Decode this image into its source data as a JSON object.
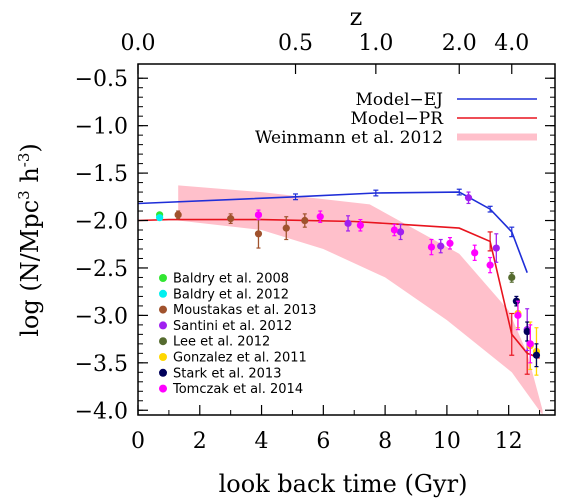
{
  "chart_data": {
    "type": "scatter",
    "xlabel": "look back time (Gyr)",
    "ylabel": "log (N/Mpc^3 h^-3)",
    "top_axis_label": "z",
    "xlim": [
      0,
      13.5
    ],
    "ylim": [
      -4.05,
      -0.35
    ],
    "x_ticks": [
      0,
      2,
      4,
      6,
      8,
      10,
      12
    ],
    "y_ticks": [
      -0.5,
      -1.0,
      -1.5,
      -2.0,
      -2.5,
      -3.0,
      -3.5,
      -4.0
    ],
    "y_tick_labels": [
      "−0.5",
      "−1.0",
      "−1.5",
      "−2.0",
      "−2.5",
      "−3.0",
      "−3.5",
      "−4.0"
    ],
    "top_ticks": [
      {
        "z_label": "0.0",
        "lookback_gyr": 0.0
      },
      {
        "z_label": "0.5",
        "lookback_gyr": 5.1
      },
      {
        "z_label": "1.0",
        "lookback_gyr": 7.7
      },
      {
        "z_label": "2.0",
        "lookback_gyr": 10.4
      },
      {
        "z_label": "4.0",
        "lookback_gyr": 12.1
      }
    ],
    "model_legend": [
      {
        "label": "Model−EJ",
        "color": "#1f2ed8",
        "style": "line"
      },
      {
        "label": "Model−PR",
        "color": "#e8141e",
        "style": "line"
      },
      {
        "label": "Weinmann et al. 2012",
        "color": "#ffc0cb",
        "style": "band"
      }
    ],
    "model_ej": {
      "color": "#1f2ed8",
      "x": [
        0,
        5.1,
        7.7,
        10.4,
        11.4,
        12.1,
        12.6
      ],
      "y": [
        -1.82,
        -1.75,
        -1.71,
        -1.7,
        -1.88,
        -2.12,
        -2.55
      ],
      "err": [
        0,
        0.03,
        0.03,
        0.03,
        0.03,
        0.05,
        0
      ]
    },
    "model_pr": {
      "color": "#e8141e",
      "x": [
        0,
        1,
        4,
        7,
        8.5,
        10.4,
        11.4,
        12.1,
        12.6,
        13
      ],
      "y": [
        -2.0,
        -1.99,
        -1.99,
        -2.01,
        -2.04,
        -2.08,
        -2.22,
        -3.2,
        -3.4,
        -3.45
      ],
      "err": [
        0,
        0,
        0,
        0,
        0,
        0,
        0.1,
        0.22,
        0.22,
        0
      ]
    },
    "weinmann_band": {
      "color": "#ffc0cb",
      "upper": [
        [
          1.3,
          -1.63
        ],
        [
          4,
          -1.7
        ],
        [
          7.5,
          -1.83
        ],
        [
          10.4,
          -2.35
        ],
        [
          12,
          -2.95
        ],
        [
          12.6,
          -3.4
        ],
        [
          13.1,
          -4.0
        ]
      ],
      "lower": [
        [
          13.1,
          -4.05
        ],
        [
          12.1,
          -3.6
        ],
        [
          10,
          -3.05
        ],
        [
          8,
          -2.6
        ],
        [
          6,
          -2.3
        ],
        [
          4,
          -2.1
        ],
        [
          1.3,
          -2.0
        ]
      ]
    },
    "observations": [
      {
        "label": "Baldry et al. 2008",
        "color": "#32e632",
        "points": [
          {
            "x": 0.7,
            "y": -1.94,
            "err": 0
          }
        ]
      },
      {
        "label": "Baldry et al. 2012",
        "color": "#00f0f0",
        "points": [
          {
            "x": 0.7,
            "y": -1.97,
            "err": 0
          }
        ]
      },
      {
        "label": "Moustakas et al. 2013",
        "color": "#a0522d",
        "points": [
          {
            "x": 1.3,
            "y": -1.94,
            "err": 0.04
          },
          {
            "x": 3.0,
            "y": -1.98,
            "err": 0.05
          },
          {
            "x": 4.8,
            "y": -2.08,
            "err": 0.12
          },
          {
            "x": 3.9,
            "y": -2.14,
            "err": 0.15
          },
          {
            "x": 5.4,
            "y": -2.0,
            "err": 0.07
          }
        ]
      },
      {
        "label": "Santini et al. 2012",
        "color": "#a020f0",
        "points": [
          {
            "x": 6.8,
            "y": -2.03,
            "err": 0.08
          },
          {
            "x": 8.5,
            "y": -2.12,
            "err": 0.08
          },
          {
            "x": 9.8,
            "y": -2.27,
            "err": 0.07
          },
          {
            "x": 10.7,
            "y": -1.76,
            "err": 0.06
          },
          {
            "x": 11.6,
            "y": -2.29,
            "err": 0.15
          },
          {
            "x": 12.6,
            "y": -3.15,
            "err": 0.22
          }
        ]
      },
      {
        "label": "Lee et al. 2012",
        "color": "#556b2f",
        "points": [
          {
            "x": 12.1,
            "y": -2.6,
            "err": 0.05
          }
        ]
      },
      {
        "label": "Gonzalez et al. 2011",
        "color": "#ffd700",
        "points": [
          {
            "x": 12.3,
            "y": -2.98,
            "err": 0.15
          },
          {
            "x": 12.7,
            "y": -3.32,
            "err": 0.25
          },
          {
            "x": 12.9,
            "y": -3.38,
            "err": 0.25
          }
        ]
      },
      {
        "label": "Stark et al. 2013",
        "color": "#00005a",
        "points": [
          {
            "x": 12.25,
            "y": -2.85,
            "err": 0.05
          },
          {
            "x": 12.6,
            "y": -3.17,
            "err": 0.1
          },
          {
            "x": 12.9,
            "y": -3.42,
            "err": 0.12
          }
        ]
      },
      {
        "label": "Tomczak et al. 2014",
        "color": "#ff00ff",
        "points": [
          {
            "x": 3.9,
            "y": -1.94,
            "err": 0.05
          },
          {
            "x": 5.9,
            "y": -1.96,
            "err": 0.06
          },
          {
            "x": 7.2,
            "y": -2.05,
            "err": 0.06
          },
          {
            "x": 8.3,
            "y": -2.1,
            "err": 0.06
          },
          {
            "x": 9.5,
            "y": -2.28,
            "err": 0.08
          },
          {
            "x": 10.1,
            "y": -2.24,
            "err": 0.06
          },
          {
            "x": 10.9,
            "y": -2.34,
            "err": 0.08
          },
          {
            "x": 11.4,
            "y": -2.47,
            "err": 0.08
          },
          {
            "x": 12.3,
            "y": -3.0,
            "err": 0.15
          },
          {
            "x": 12.7,
            "y": -3.3,
            "err": 0.2
          }
        ]
      }
    ]
  }
}
